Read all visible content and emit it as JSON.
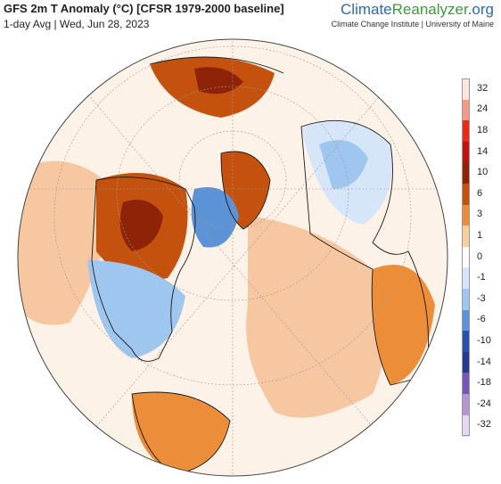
{
  "header": {
    "title": "GFS 2m T Anomaly (°C) [CFSR 1979-2000 baseline]",
    "subtitle": "1-day Avg | Wed, Jun 28, 2023"
  },
  "brand": {
    "part1": "Climate",
    "part2": "Reanalyzer",
    "part3": ".org",
    "affiliation": "Climate Change Institute | University of Maine"
  },
  "legend": {
    "labels": [
      "32",
      "24",
      "18",
      "14",
      "10",
      "6",
      "3",
      "1",
      "0",
      "-1",
      "-3",
      "-6",
      "-10",
      "-14",
      "-18",
      "-24",
      "-32"
    ],
    "colors": [
      "#fbe6e2",
      "#f49a8a",
      "#ec2a1a",
      "#c0150c",
      "#8e2308",
      "#c4520e",
      "#ec8e39",
      "#f8cda2",
      "#ffffff",
      "#d6e6f8",
      "#9fc6ef",
      "#5c93d6",
      "#2a4fb0",
      "#253a8f",
      "#7258b8",
      "#b296d6",
      "#e6d8ef"
    ]
  },
  "map": {
    "colors": {
      "ocean_neutral": "#fdf2e8",
      "warm_light": "#f6c7a0",
      "warm": "#ec8e39",
      "warm_strong": "#c4520e",
      "hot": "#8e2308",
      "cool_light": "#d6e6f8",
      "cool": "#9fc6ef",
      "cool_strong": "#5c93d6"
    }
  }
}
